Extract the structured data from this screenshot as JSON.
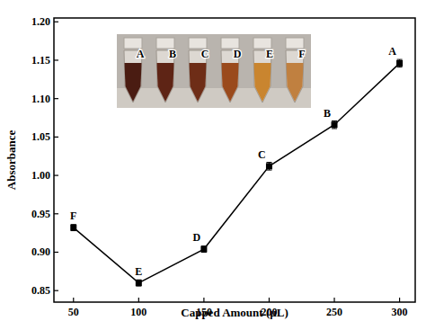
{
  "chart_data": {
    "type": "line",
    "x_label": "Capped Amount (µL)",
    "y_label": "Absorbance",
    "x": [
      50,
      100,
      150,
      200,
      250,
      300
    ],
    "values": [
      0.932,
      0.86,
      0.904,
      1.012,
      1.066,
      1.146
    ],
    "errors": [
      0.004,
      0.004,
      0.004,
      0.005,
      0.005,
      0.005
    ],
    "point_labels": [
      "F",
      "E",
      "D",
      "C",
      "B",
      "A"
    ],
    "inset_labels": [
      "A",
      "B",
      "C",
      "D",
      "E",
      "F"
    ],
    "color": "#000000",
    "marker": "square",
    "line_style": "solid",
    "xlim": [
      35,
      312
    ],
    "xticks": [
      50,
      100,
      150,
      200,
      250,
      300
    ],
    "ylim": [
      0.835,
      1.205
    ],
    "yticks": [
      0.85,
      {
        "value": 0.9,
        "label": "0.90"
      },
      0.95,
      {
        "value": 1.0,
        "label": "1.00"
      },
      1.05,
      {
        "value": 1.1,
        "label": "1.10"
      },
      1.15,
      {
        "value": 1.2,
        "label": "1.20"
      }
    ],
    "grid": false
  }
}
